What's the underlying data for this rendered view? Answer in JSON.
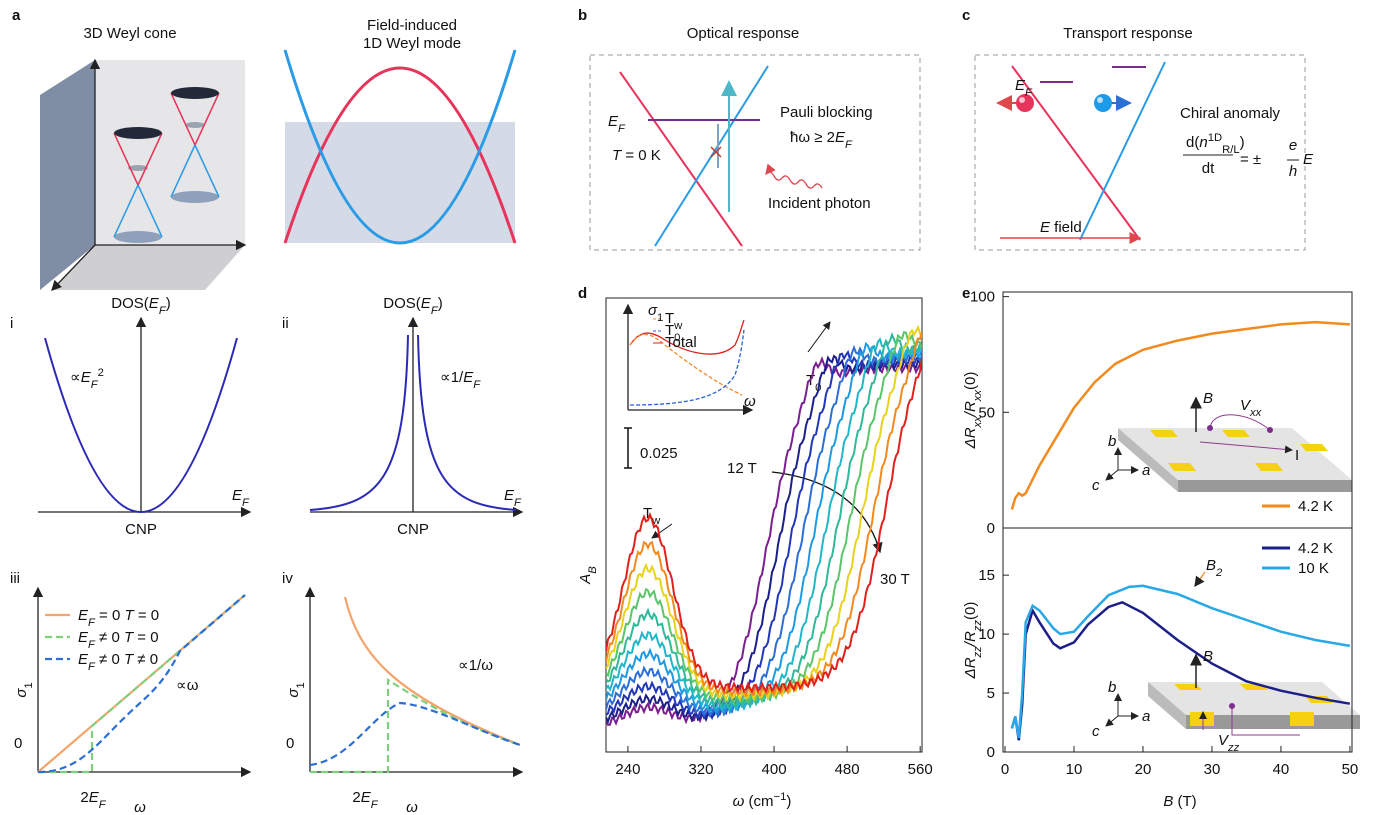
{
  "panel_labels": [
    "a",
    "b",
    "c",
    "d",
    "e"
  ],
  "a": {
    "left_title": "3D Weyl cone",
    "right_title": [
      "Field-induced",
      "1D Weyl mode"
    ]
  },
  "b": {
    "title": "Optical response",
    "fermi": [
      "E",
      "F"
    ],
    "temperature": [
      "T",
      " = 0 K"
    ],
    "pauli": "Pauli blocking",
    "condition": [
      "ħω ≥ 2",
      "E",
      "F"
    ],
    "photon": "Incident photon"
  },
  "c": {
    "title": "Transport response",
    "fermi": [
      "E",
      "F"
    ],
    "anomaly": "Chiral anomaly",
    "numerator": [
      "d(",
      "n",
      "1D",
      "R/L",
      ")"
    ],
    "denominator": "dt",
    "sign": "= ±",
    "charge": "e",
    "planck": "h",
    "field_symbol": "E",
    "field": [
      "E",
      " field"
    ]
  },
  "sub": {
    "i": {
      "label": "i",
      "ylabel": [
        "DOS(",
        "E",
        "F",
        ")"
      ],
      "xlabel": [
        "E",
        "F"
      ],
      "origin": "CNP",
      "scaling": [
        "∝",
        "E",
        "F",
        "2"
      ]
    },
    "ii": {
      "label": "ii",
      "ylabel": [
        "DOS(",
        "E",
        "F",
        ")"
      ],
      "xlabel": [
        "E",
        "F"
      ],
      "origin": "CNP",
      "scaling": [
        "∝1/",
        "E",
        "F"
      ]
    },
    "iii": {
      "label": "iii",
      "ylabel": [
        "σ",
        "1"
      ],
      "zero": "0",
      "xtick": [
        "2",
        "E",
        "F"
      ],
      "xlabel": "ω",
      "scaling": "∝ω",
      "legend": [
        [
          "E",
          "F",
          " = 0  ",
          "T",
          " = 0"
        ],
        [
          "E",
          "F",
          " ≠ 0  ",
          "T",
          " = 0"
        ],
        [
          "E",
          "F",
          " ≠ 0  ",
          "T",
          " ≠ 0"
        ]
      ]
    },
    "iv": {
      "label": "iv",
      "ylabel": [
        "σ",
        "1"
      ],
      "zero": "0",
      "xtick": [
        "2",
        "E",
        "F"
      ],
      "xlabel": "ω",
      "scaling": "∝1/ω"
    }
  },
  "chart_data": [
    {
      "type": "line",
      "xlabel": [
        "ω",
        " (cm",
        "−1",
        ")"
      ],
      "ylabel": [
        "A",
        "B"
      ],
      "xlim": [
        216,
        562
      ],
      "xticks": [
        240,
        320,
        400,
        480,
        560
      ],
      "scale_bar": 0.025,
      "annotations": {
        "t0": [
          "T",
          "0"
        ],
        "tw": [
          "T",
          "w"
        ],
        "low_field": "12 T",
        "high_field": "30 T"
      },
      "inset": {
        "ylabel": [
          "σ",
          "1"
        ],
        "xlabel": "ω",
        "legend": [
          [
            "T",
            "w"
          ],
          [
            "T",
            "0"
          ],
          [
            "Total"
          ]
        ]
      }
    },
    {
      "type": "line",
      "ylabel": [
        "ΔR",
        "xx",
        "/R",
        "xx",
        "(0)"
      ],
      "xlim": [
        0,
        50.3
      ],
      "ylim": [
        0,
        102
      ],
      "yticks": [
        0,
        50,
        100
      ],
      "legend": "lower right",
      "series": [
        {
          "name": "4.2 K",
          "color": "#f28a1e",
          "x": [
            1,
            1.5,
            2,
            2.5,
            3,
            5,
            8,
            10,
            13,
            16,
            20,
            25,
            30,
            35,
            40,
            45,
            50
          ],
          "values": [
            8,
            13,
            15,
            14,
            15,
            27,
            42,
            52,
            63,
            71,
            77,
            81,
            84,
            86,
            88,
            89,
            88
          ]
        }
      ],
      "inset": {
        "field": "B",
        "voltage": [
          "V",
          "xx"
        ],
        "current": "I",
        "axes": [
          "a",
          "b",
          "c"
        ]
      }
    },
    {
      "type": "line",
      "ylabel": [
        "ΔR",
        "zz",
        "/R",
        "zz",
        "(0)"
      ],
      "xlabel": [
        "B",
        " (T)"
      ],
      "xlim": [
        0,
        50.3
      ],
      "xticks": [
        0,
        10,
        20,
        30,
        40,
        50
      ],
      "ylim": [
        0,
        19
      ],
      "yticks": [
        0,
        5,
        10,
        15
      ],
      "legend": "upper right",
      "annotation": [
        "B",
        "2"
      ],
      "series": [
        {
          "name": "4.2 K",
          "color": "#1c1f8a",
          "x": [
            1,
            1.5,
            2,
            2.5,
            3,
            4,
            5,
            7,
            8,
            10,
            12,
            15,
            17,
            20,
            25,
            30,
            35,
            40,
            45,
            50
          ],
          "values": [
            2,
            3,
            1,
            4,
            10,
            12,
            11,
            9.2,
            8.8,
            9.3,
            10.8,
            12.3,
            12.7,
            11.8,
            9.5,
            7.5,
            6,
            5.2,
            4.6,
            4.1
          ]
        },
        {
          "name": "10 K",
          "color": "#29a8e6",
          "x": [
            1,
            1.5,
            2,
            2.5,
            3,
            4,
            5,
            7,
            8,
            10,
            12,
            15,
            18,
            20,
            25,
            30,
            35,
            40,
            45,
            50
          ],
          "values": [
            2,
            3,
            1.2,
            5,
            11,
            12.4,
            12,
            10.5,
            10,
            10.2,
            11.5,
            13.3,
            14,
            14.1,
            13.4,
            12.2,
            11.2,
            10.2,
            9.5,
            9
          ]
        }
      ],
      "inset": {
        "field": "B",
        "voltage": [
          "V",
          "zz"
        ],
        "axes": [
          "a",
          "b",
          "c"
        ]
      }
    }
  ]
}
